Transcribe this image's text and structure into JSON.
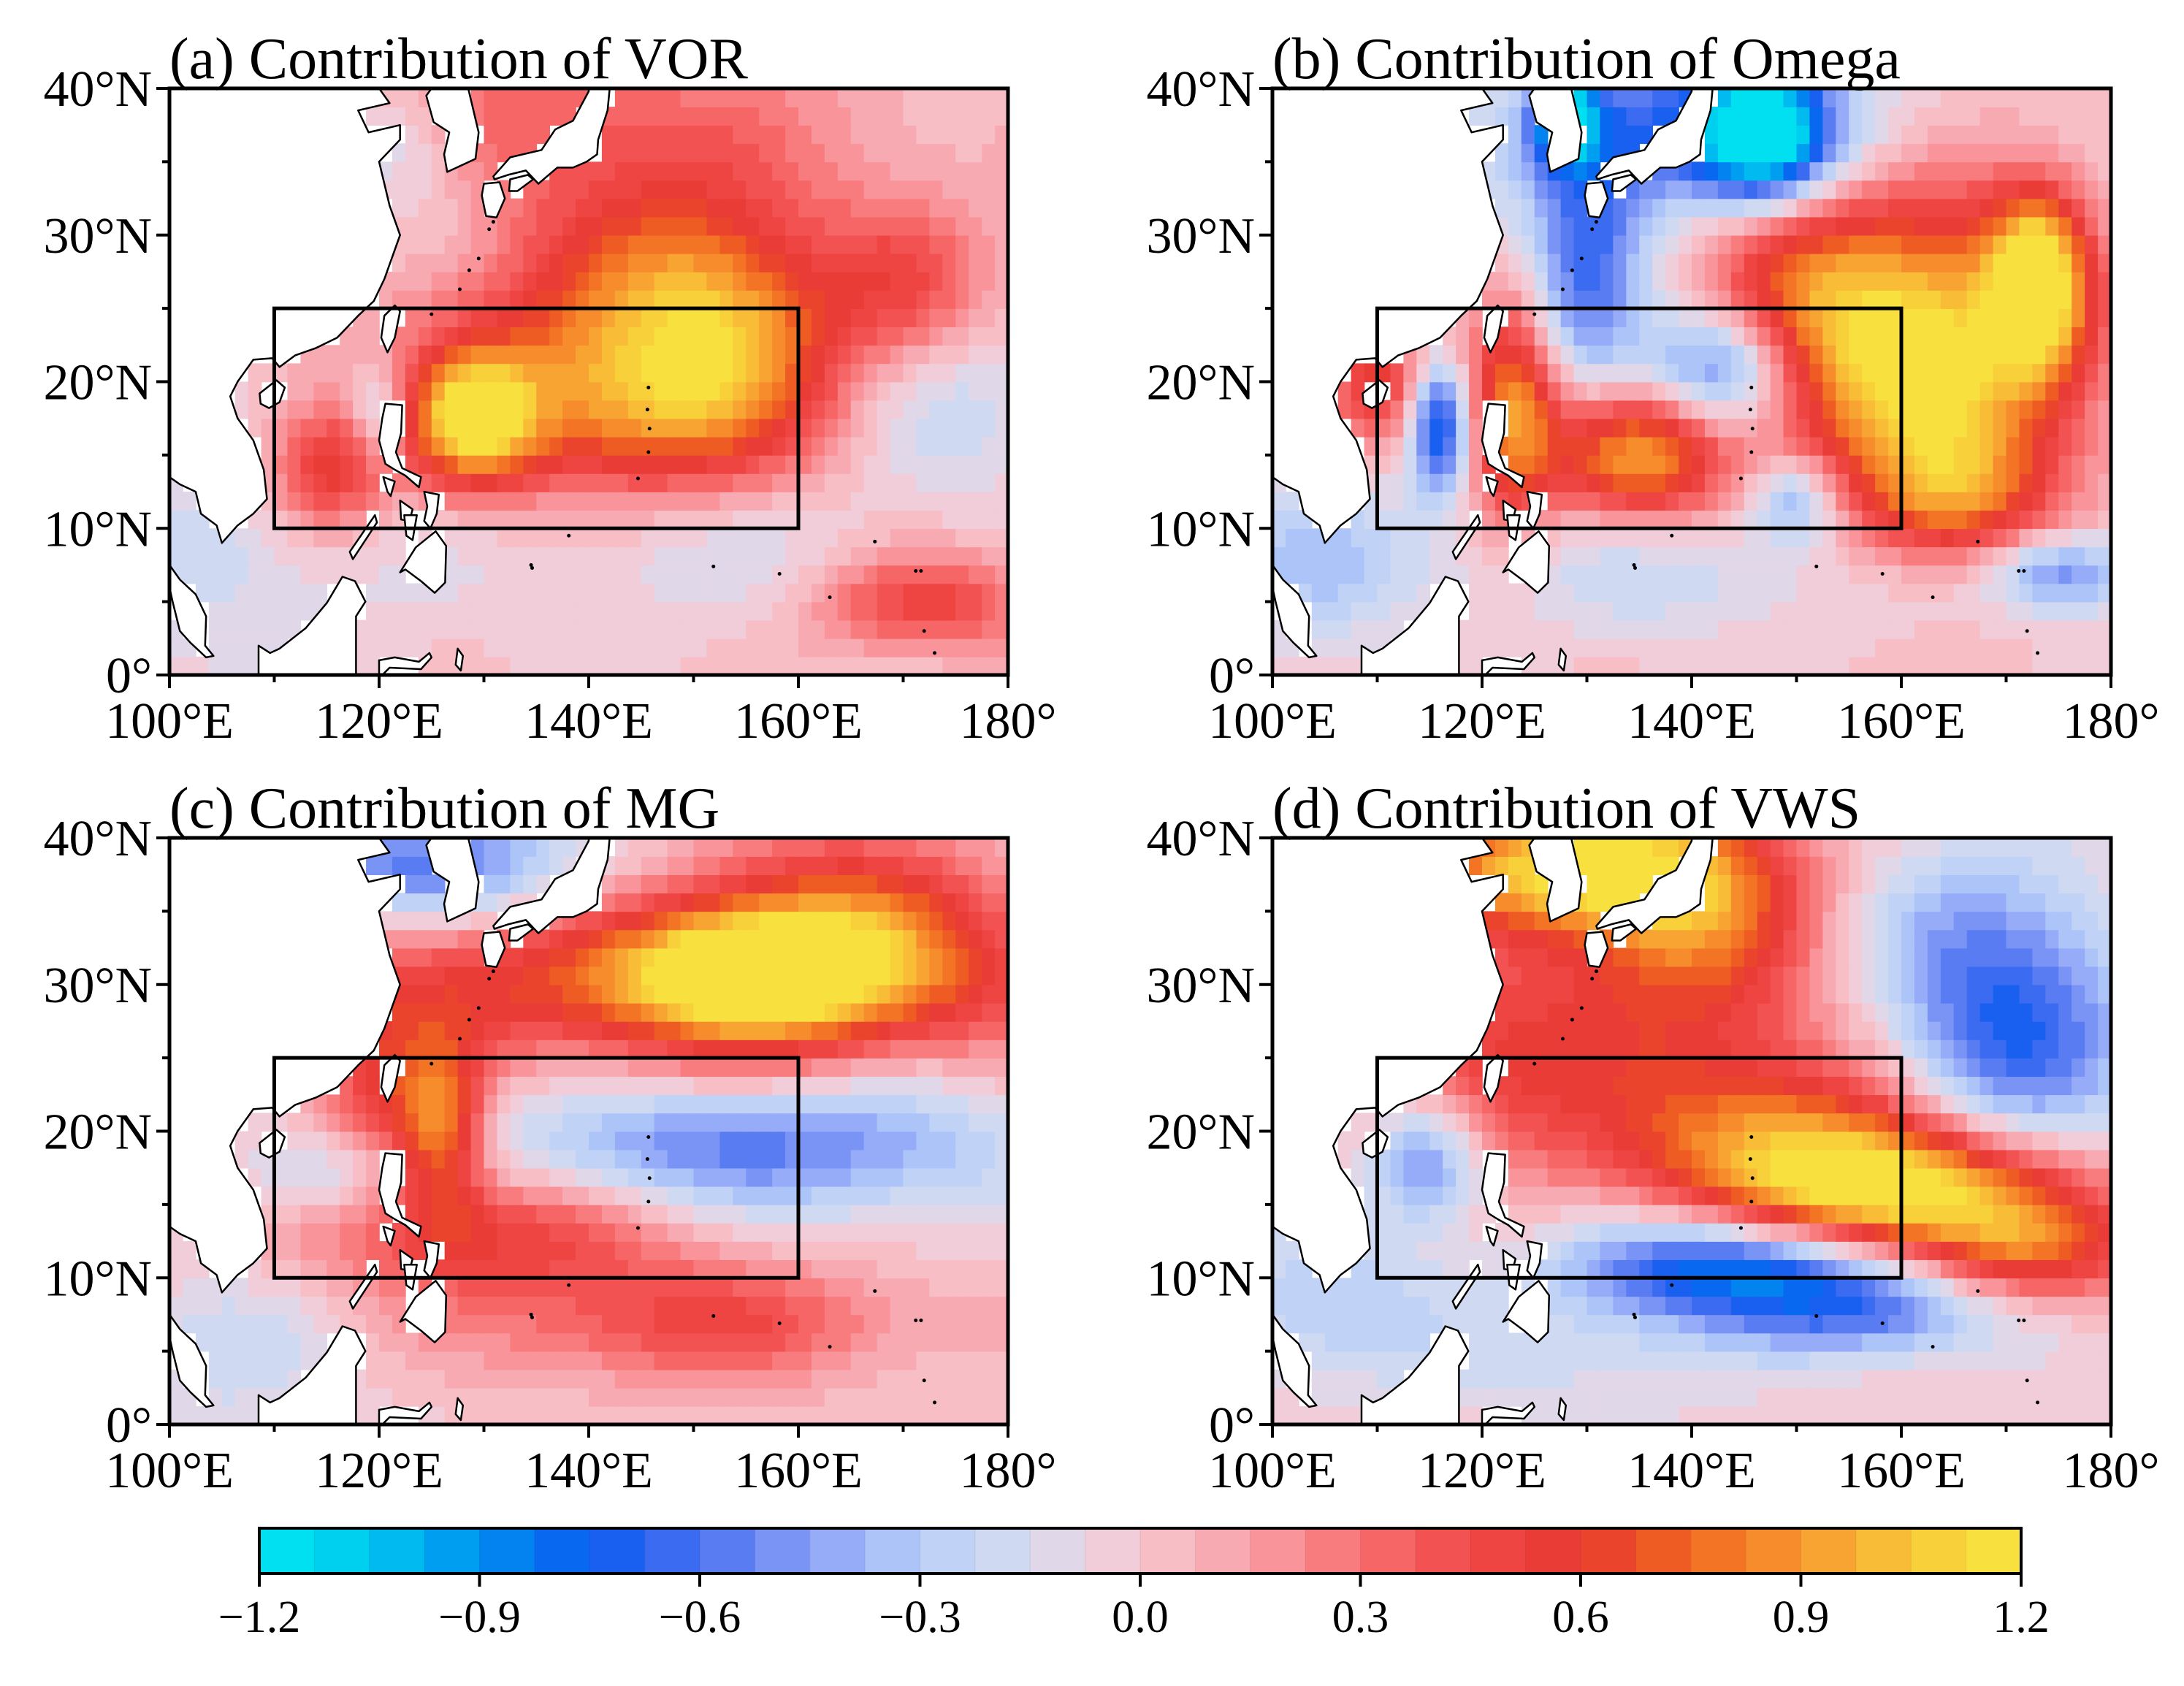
{
  "chart_data": [
    {
      "type": "heatmap",
      "panel": "a",
      "title": "(a) Contribution of VOR",
      "xlim": [
        100,
        180
      ],
      "ylim": [
        0,
        40
      ],
      "xticks": [
        "100°E",
        "120°E",
        "140°E",
        "160°E",
        "180°"
      ],
      "yticks": [
        "40°N",
        "30°N",
        "20°N",
        "10°N",
        "0°"
      ],
      "box": {
        "lon": [
          110,
          160
        ],
        "lat": [
          10,
          25
        ]
      },
      "features": [
        {
          "lon": 129,
          "lat": 17.5,
          "value": 1.0,
          "sx": 4,
          "sy": 3
        },
        {
          "lon": 115,
          "lat": 14,
          "value": 0.6,
          "sx": 4,
          "sy": 3
        },
        {
          "lon": 145,
          "lat": 18,
          "value": 0.6,
          "sx": 10,
          "sy": 4
        },
        {
          "lon": 155,
          "lat": 23,
          "value": 0.55,
          "sx": 7,
          "sy": 5
        },
        {
          "lon": 148,
          "lat": 27,
          "value": 0.5,
          "sx": 8,
          "sy": 5
        },
        {
          "lon": 135,
          "lat": 22,
          "value": 0.4,
          "sx": 12,
          "sy": 6
        },
        {
          "lon": 170,
          "lat": 27,
          "value": 0.4,
          "sx": 6,
          "sy": 4
        },
        {
          "lon": 172,
          "lat": 5,
          "value": 0.5,
          "sx": 8,
          "sy": 2.5
        },
        {
          "lon": 130,
          "lat": 37,
          "value": 0.4,
          "sx": 25,
          "sy": 5
        },
        {
          "lon": 120,
          "lat": 18,
          "value": -0.4,
          "sx": 2,
          "sy": 2.5
        },
        {
          "lon": 120,
          "lat": 37,
          "value": -0.4,
          "sx": 5,
          "sy": 3
        },
        {
          "lon": 125,
          "lat": 33,
          "value": -0.25,
          "sx": 6,
          "sy": 4
        },
        {
          "lon": 105,
          "lat": 8,
          "value": -0.2,
          "sx": 10,
          "sy": 5
        },
        {
          "lon": 150,
          "lat": 8,
          "value": -0.15,
          "sx": 15,
          "sy": 3
        },
        {
          "lon": 175,
          "lat": 18,
          "value": -0.2,
          "sx": 6,
          "sy": 4
        }
      ]
    },
    {
      "type": "heatmap",
      "panel": "b",
      "title": "(b) Contribution of Omega",
      "xlim": [
        100,
        180
      ],
      "ylim": [
        0,
        40
      ],
      "xticks": [
        "100°E",
        "120°E",
        "140°E",
        "160°E",
        "180°"
      ],
      "yticks": [
        "40°N",
        "30°N",
        "20°N",
        "10°N",
        "0°"
      ],
      "box": {
        "lon": [
          110,
          160
        ],
        "lat": [
          10,
          25
        ]
      },
      "features": [
        {
          "lon": 173,
          "lat": 27,
          "value": 1.1,
          "sx": 3,
          "sy": 4
        },
        {
          "lon": 168,
          "lat": 22,
          "value": 0.7,
          "sx": 8,
          "sy": 8
        },
        {
          "lon": 158,
          "lat": 20,
          "value": 0.7,
          "sx": 8,
          "sy": 6
        },
        {
          "lon": 123,
          "lat": 18,
          "value": 0.9,
          "sx": 3,
          "sy": 5
        },
        {
          "lon": 135,
          "lat": 15,
          "value": 0.9,
          "sx": 6,
          "sy": 3
        },
        {
          "lon": 152,
          "lat": 27,
          "value": 0.6,
          "sx": 8,
          "sy": 5
        },
        {
          "lon": 110,
          "lat": 20,
          "value": 0.6,
          "sx": 3,
          "sy": 3
        },
        {
          "lon": 165,
          "lat": 12,
          "value": 0.5,
          "sx": 6,
          "sy": 3
        },
        {
          "lon": 128,
          "lat": 38,
          "value": -1.0,
          "sx": 2,
          "sy": 2
        },
        {
          "lon": 147,
          "lat": 37,
          "value": -1.0,
          "sx": 4,
          "sy": 3
        },
        {
          "lon": 140,
          "lat": 37,
          "value": -0.7,
          "sx": 12,
          "sy": 4
        },
        {
          "lon": 130,
          "lat": 28,
          "value": -0.6,
          "sx": 4,
          "sy": 6
        },
        {
          "lon": 143,
          "lat": 21,
          "value": -0.7,
          "sx": 5,
          "sy": 3
        },
        {
          "lon": 116,
          "lat": 17,
          "value": -0.8,
          "sx": 2,
          "sy": 3
        },
        {
          "lon": 150,
          "lat": 12,
          "value": -0.5,
          "sx": 3,
          "sy": 2
        },
        {
          "lon": 175,
          "lat": 7,
          "value": -0.6,
          "sx": 5,
          "sy": 2
        },
        {
          "lon": 105,
          "lat": 8,
          "value": -0.3,
          "sx": 8,
          "sy": 4
        },
        {
          "lon": 140,
          "lat": 7,
          "value": -0.2,
          "sx": 15,
          "sy": 3
        }
      ]
    },
    {
      "type": "heatmap",
      "panel": "c",
      "title": "(c) Contribution of MG",
      "xlim": [
        100,
        180
      ],
      "ylim": [
        0,
        40
      ],
      "xticks": [
        "100°E",
        "120°E",
        "140°E",
        "160°E",
        "180°"
      ],
      "yticks": [
        "40°N",
        "30°N",
        "20°N",
        "10°N",
        "0°"
      ],
      "box": {
        "lon": [
          110,
          160
        ],
        "lat": [
          10,
          25
        ]
      },
      "features": [
        {
          "lon": 145,
          "lat": 30,
          "value": 0.65,
          "sx": 30,
          "sy": 4
        },
        {
          "lon": 155,
          "lat": 31,
          "value": 0.85,
          "sx": 8,
          "sy": 3
        },
        {
          "lon": 165,
          "lat": 34,
          "value": 0.6,
          "sx": 10,
          "sy": 5
        },
        {
          "lon": 126,
          "lat": 20,
          "value": 0.8,
          "sx": 3,
          "sy": 4
        },
        {
          "lon": 130,
          "lat": 13,
          "value": 0.5,
          "sx": 12,
          "sy": 3
        },
        {
          "lon": 120,
          "lat": 22,
          "value": 0.4,
          "sx": 4,
          "sy": 4
        },
        {
          "lon": 150,
          "lat": 7,
          "value": 0.45,
          "sx": 15,
          "sy": 3
        },
        {
          "lon": 125,
          "lat": 38,
          "value": -0.6,
          "sx": 10,
          "sy": 3
        },
        {
          "lon": 150,
          "lat": 19,
          "value": -0.5,
          "sx": 14,
          "sy": 3
        },
        {
          "lon": 170,
          "lat": 19,
          "value": -0.25,
          "sx": 10,
          "sy": 4
        },
        {
          "lon": 115,
          "lat": 17,
          "value": -0.3,
          "sx": 6,
          "sy": 2
        },
        {
          "lon": 105,
          "lat": 5,
          "value": -0.2,
          "sx": 8,
          "sy": 4
        }
      ]
    },
    {
      "type": "heatmap",
      "panel": "d",
      "title": "(d) Contribution of VWS",
      "xlim": [
        100,
        180
      ],
      "ylim": [
        0,
        40
      ],
      "xticks": [
        "100°E",
        "120°E",
        "140°E",
        "160°E",
        "180°"
      ],
      "yticks": [
        "40°N",
        "30°N",
        "20°N",
        "10°N",
        "0°"
      ],
      "box": {
        "lon": [
          110,
          160
        ],
        "lat": [
          10,
          25
        ]
      },
      "features": [
        {
          "lon": 127,
          "lat": 38,
          "value": 1.0,
          "sx": 10,
          "sy": 3
        },
        {
          "lon": 140,
          "lat": 36,
          "value": 0.7,
          "sx": 8,
          "sy": 5
        },
        {
          "lon": 160,
          "lat": 16,
          "value": 1.0,
          "sx": 10,
          "sy": 3
        },
        {
          "lon": 148,
          "lat": 19,
          "value": 0.7,
          "sx": 12,
          "sy": 4
        },
        {
          "lon": 172,
          "lat": 12,
          "value": 0.7,
          "sx": 8,
          "sy": 3
        },
        {
          "lon": 135,
          "lat": 27,
          "value": 0.4,
          "sx": 15,
          "sy": 6
        },
        {
          "lon": 120,
          "lat": 24,
          "value": 0.3,
          "sx": 6,
          "sy": 5
        },
        {
          "lon": 143,
          "lat": 11,
          "value": -0.8,
          "sx": 10,
          "sy": 2.5
        },
        {
          "lon": 158,
          "lat": 8,
          "value": -0.6,
          "sx": 10,
          "sy": 2.5
        },
        {
          "lon": 115,
          "lat": 18,
          "value": -0.6,
          "sx": 4,
          "sy": 3
        },
        {
          "lon": 170,
          "lat": 25,
          "value": -0.6,
          "sx": 8,
          "sy": 5
        },
        {
          "lon": 168,
          "lat": 33,
          "value": -0.4,
          "sx": 10,
          "sy": 5
        },
        {
          "lon": 105,
          "lat": 8,
          "value": -0.3,
          "sx": 8,
          "sy": 4
        },
        {
          "lon": 130,
          "lat": 5,
          "value": -0.2,
          "sx": 10,
          "sy": 4
        }
      ]
    }
  ],
  "colorbar": {
    "min": -1.2,
    "max": 1.2,
    "levels": 32,
    "ticks": [
      -1.2,
      -0.9,
      -0.6,
      -0.3,
      0.0,
      0.3,
      0.6,
      0.9,
      1.2
    ],
    "tick_labels": [
      "−1.2",
      "−0.9",
      "−0.6",
      "−0.3",
      "0.0",
      "0.3",
      "0.6",
      "0.9",
      "1.2"
    ]
  },
  "colors": {
    "stops": [
      "#00e8f0",
      "#00c8f0",
      "#0090f0",
      "#0a5af0",
      "#4a70f0",
      "#8aa0f8",
      "#b8d0f8",
      "#d8dcf0",
      "#f8c8d0",
      "#f8a0a8",
      "#f87070",
      "#f04848",
      "#e83830",
      "#f06820",
      "#f89830",
      "#f8c838",
      "#f8e840"
    ],
    "land": "#ffffff",
    "box": "#000000"
  }
}
